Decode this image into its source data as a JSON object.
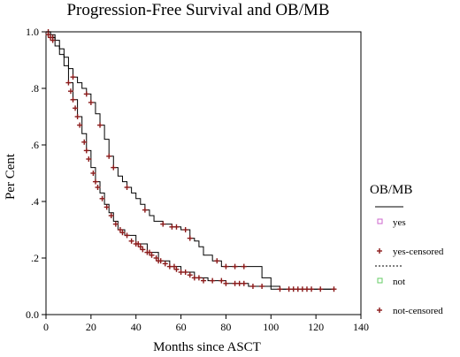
{
  "chart_data": {
    "type": "line",
    "title": "Progression-Free Survival and OB/MB",
    "xlabel": "Months since ASCT",
    "ylabel": "Per Cent",
    "xlim": [
      0,
      140
    ],
    "ylim": [
      0,
      1.0
    ],
    "xticks": [
      0,
      20,
      40,
      60,
      80,
      100,
      120,
      140
    ],
    "xtick_labels": [
      "0",
      "20",
      "40",
      "60",
      "80",
      "100",
      "120",
      "140"
    ],
    "yticks": [
      0,
      0.2,
      0.4,
      0.6,
      0.8,
      1.0
    ],
    "ytick_labels": [
      "0.0",
      ".2",
      ".4",
      ".6",
      ".8",
      "1.0"
    ],
    "grid": false,
    "legend_position": "right",
    "legend": {
      "title": "OB/MB",
      "entries": [
        "yes",
        "yes-censored",
        "not",
        "not-censored"
      ]
    },
    "colors": {
      "line": "#000000",
      "censor": "#8b1a1a",
      "yes_marker": "#cc66cc",
      "not_marker": "#66cc66"
    },
    "series": [
      {
        "name": "yes",
        "step": [
          [
            0,
            1.0
          ],
          [
            2,
            0.99
          ],
          [
            4,
            0.97
          ],
          [
            6,
            0.94
          ],
          [
            8,
            0.91
          ],
          [
            10,
            0.87
          ],
          [
            12,
            0.84
          ],
          [
            14,
            0.82
          ],
          [
            16,
            0.8
          ],
          [
            18,
            0.78
          ],
          [
            20,
            0.75
          ],
          [
            22,
            0.71
          ],
          [
            24,
            0.67
          ],
          [
            26,
            0.62
          ],
          [
            28,
            0.56
          ],
          [
            30,
            0.52
          ],
          [
            32,
            0.49
          ],
          [
            34,
            0.47
          ],
          [
            36,
            0.45
          ],
          [
            38,
            0.43
          ],
          [
            40,
            0.41
          ],
          [
            42,
            0.39
          ],
          [
            44,
            0.37
          ],
          [
            46,
            0.35
          ],
          [
            48,
            0.33
          ],
          [
            52,
            0.32
          ],
          [
            56,
            0.31
          ],
          [
            60,
            0.3
          ],
          [
            64,
            0.27
          ],
          [
            66,
            0.26
          ],
          [
            68,
            0.24
          ],
          [
            70,
            0.21
          ],
          [
            74,
            0.19
          ],
          [
            78,
            0.17
          ],
          [
            96,
            0.13
          ],
          [
            100,
            0.1
          ],
          [
            104,
            0.09
          ],
          [
            128,
            0.09
          ]
        ],
        "censored": [
          [
            1,
            1.0
          ],
          [
            3,
            0.98
          ],
          [
            12,
            0.84
          ],
          [
            18,
            0.78
          ],
          [
            20,
            0.75
          ],
          [
            24,
            0.67
          ],
          [
            28,
            0.56
          ],
          [
            30,
            0.52
          ],
          [
            36,
            0.45
          ],
          [
            44,
            0.37
          ],
          [
            52,
            0.32
          ],
          [
            56,
            0.31
          ],
          [
            58,
            0.31
          ],
          [
            62,
            0.3
          ],
          [
            64,
            0.27
          ],
          [
            76,
            0.19
          ],
          [
            80,
            0.17
          ],
          [
            84,
            0.17
          ],
          [
            88,
            0.17
          ]
        ]
      },
      {
        "name": "not",
        "step": [
          [
            0,
            1.0
          ],
          [
            2,
            0.98
          ],
          [
            4,
            0.95
          ],
          [
            6,
            0.92
          ],
          [
            8,
            0.88
          ],
          [
            10,
            0.82
          ],
          [
            12,
            0.76
          ],
          [
            14,
            0.7
          ],
          [
            16,
            0.64
          ],
          [
            18,
            0.58
          ],
          [
            20,
            0.52
          ],
          [
            22,
            0.47
          ],
          [
            24,
            0.43
          ],
          [
            26,
            0.39
          ],
          [
            28,
            0.36
          ],
          [
            30,
            0.33
          ],
          [
            32,
            0.3
          ],
          [
            35,
            0.28
          ],
          [
            40,
            0.25
          ],
          [
            45,
            0.22
          ],
          [
            50,
            0.19
          ],
          [
            55,
            0.17
          ],
          [
            60,
            0.15
          ],
          [
            66,
            0.13
          ],
          [
            72,
            0.12
          ],
          [
            80,
            0.11
          ],
          [
            90,
            0.1
          ],
          [
            100,
            0.09
          ],
          [
            128,
            0.09
          ]
        ],
        "censored": [
          [
            1,
            0.99
          ],
          [
            2,
            0.98
          ],
          [
            3,
            0.97
          ],
          [
            10,
            0.82
          ],
          [
            11,
            0.79
          ],
          [
            12,
            0.76
          ],
          [
            13,
            0.73
          ],
          [
            14,
            0.7
          ],
          [
            15,
            0.67
          ],
          [
            17,
            0.61
          ],
          [
            18,
            0.58
          ],
          [
            19,
            0.55
          ],
          [
            21,
            0.5
          ],
          [
            22,
            0.47
          ],
          [
            23,
            0.45
          ],
          [
            25,
            0.41
          ],
          [
            27,
            0.38
          ],
          [
            29,
            0.35
          ],
          [
            31,
            0.32
          ],
          [
            33,
            0.3
          ],
          [
            34,
            0.29
          ],
          [
            36,
            0.28
          ],
          [
            38,
            0.26
          ],
          [
            40,
            0.25
          ],
          [
            41,
            0.25
          ],
          [
            42,
            0.24
          ],
          [
            43,
            0.23
          ],
          [
            45,
            0.22
          ],
          [
            46,
            0.22
          ],
          [
            47,
            0.21
          ],
          [
            49,
            0.2
          ],
          [
            50,
            0.19
          ],
          [
            51,
            0.19
          ],
          [
            53,
            0.18
          ],
          [
            55,
            0.17
          ],
          [
            57,
            0.17
          ],
          [
            58,
            0.16
          ],
          [
            60,
            0.15
          ],
          [
            62,
            0.15
          ],
          [
            64,
            0.14
          ],
          [
            66,
            0.13
          ],
          [
            68,
            0.13
          ],
          [
            70,
            0.12
          ],
          [
            74,
            0.12
          ],
          [
            78,
            0.12
          ],
          [
            80,
            0.11
          ],
          [
            84,
            0.11
          ],
          [
            86,
            0.11
          ],
          [
            88,
            0.11
          ],
          [
            92,
            0.1
          ],
          [
            96,
            0.1
          ],
          [
            104,
            0.09
          ],
          [
            108,
            0.09
          ],
          [
            110,
            0.09
          ],
          [
            112,
            0.09
          ],
          [
            114,
            0.09
          ],
          [
            116,
            0.09
          ],
          [
            118,
            0.09
          ],
          [
            122,
            0.09
          ],
          [
            128,
            0.09
          ]
        ]
      }
    ]
  }
}
